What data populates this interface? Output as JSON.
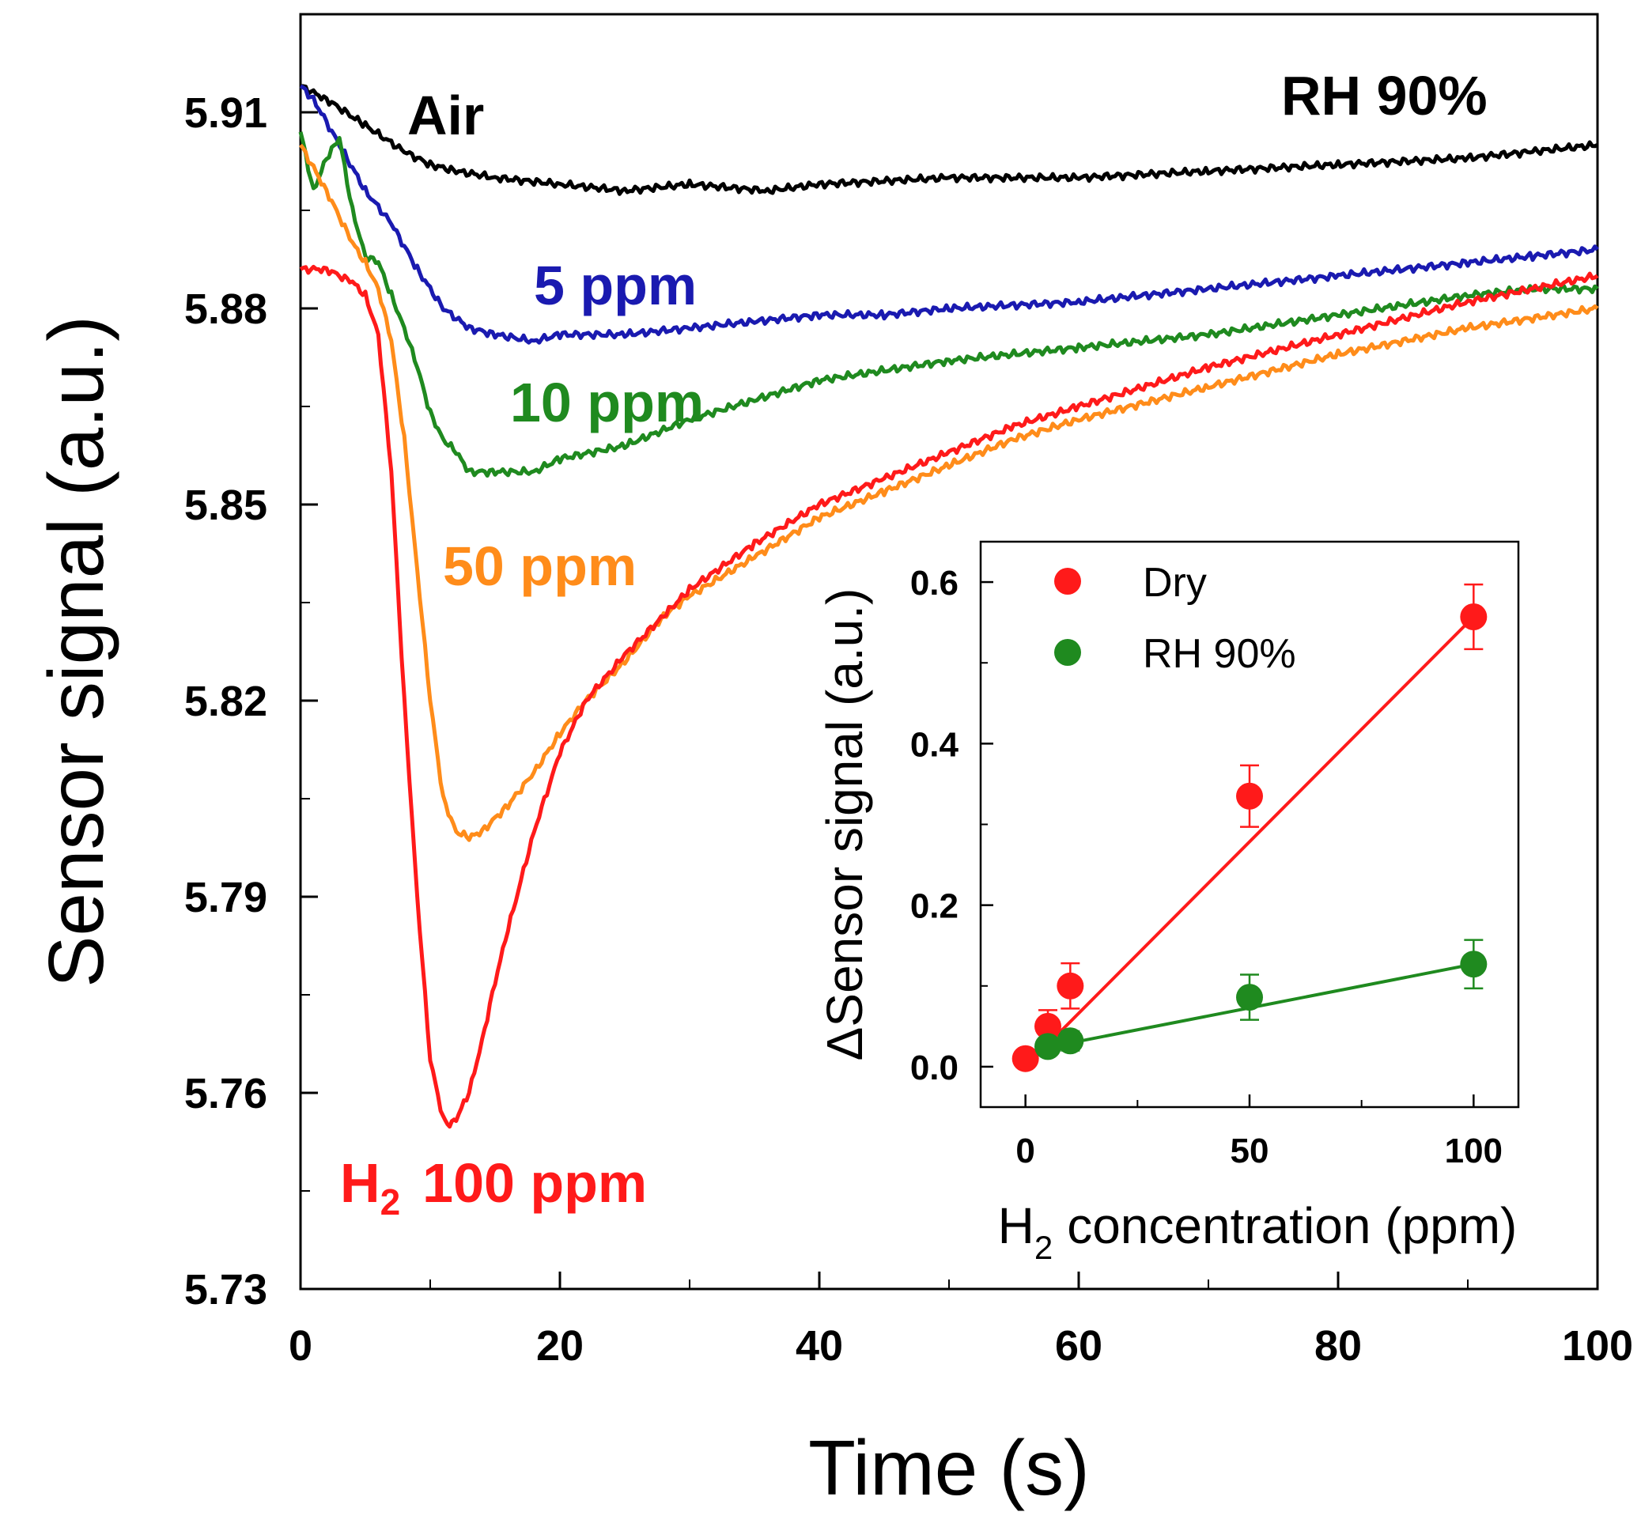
{
  "chart_data": [
    {
      "type": "line",
      "xlabel": "Time (s)",
      "ylabel": "Sensor signal (a.u.)",
      "xlim": [
        0,
        100
      ],
      "ylim": [
        5.73,
        5.925
      ],
      "xticks": [
        0,
        20,
        40,
        60,
        80,
        100
      ],
      "xtick_labels": [
        "0",
        "20",
        "40",
        "60",
        "80",
        "100"
      ],
      "yticks": [
        5.73,
        5.76,
        5.79,
        5.82,
        5.85,
        5.88,
        5.91
      ],
      "ytick_labels": [
        "5.73",
        "5.76",
        "5.79",
        "5.82",
        "5.85",
        "5.88",
        "5.91"
      ],
      "annotation": "RH 90%",
      "series": [
        {
          "name": "Air",
          "label": "Air",
          "color": "#000000",
          "x": [
            0,
            2,
            5,
            8,
            10,
            12,
            15,
            20,
            25,
            30,
            36,
            40,
            50,
            60,
            70,
            80,
            90,
            95,
            100
          ],
          "y": [
            5.914,
            5.912,
            5.908,
            5.904,
            5.902,
            5.901,
            5.9,
            5.899,
            5.898,
            5.899,
            5.898,
            5.899,
            5.9,
            5.9,
            5.901,
            5.902,
            5.903,
            5.904,
            5.905
          ]
        },
        {
          "name": "5 ppm",
          "label": "5 ppm",
          "color": "#1a1ab0",
          "x": [
            0,
            1,
            3,
            5,
            7,
            9,
            11,
            13,
            15,
            18,
            20,
            25,
            30,
            35,
            40,
            45,
            50,
            60,
            70,
            80,
            90,
            95,
            100
          ],
          "y": [
            5.914,
            5.912,
            5.905,
            5.898,
            5.893,
            5.886,
            5.88,
            5.877,
            5.876,
            5.875,
            5.876,
            5.876,
            5.877,
            5.878,
            5.879,
            5.879,
            5.88,
            5.881,
            5.883,
            5.885,
            5.887,
            5.888,
            5.889
          ]
        },
        {
          "name": "10 ppm",
          "label": "10 ppm",
          "color": "#1f8a1f",
          "x": [
            0,
            1,
            2,
            3,
            4,
            5,
            6,
            7,
            8,
            9,
            10,
            11,
            12,
            13,
            15,
            18,
            20,
            25,
            30,
            35,
            40,
            50,
            60,
            70,
            80,
            90,
            95,
            100
          ],
          "y": [
            5.907,
            5.898,
            5.903,
            5.906,
            5.895,
            5.888,
            5.887,
            5.882,
            5.877,
            5.871,
            5.864,
            5.86,
            5.858,
            5.855,
            5.855,
            5.855,
            5.857,
            5.859,
            5.863,
            5.866,
            5.869,
            5.872,
            5.874,
            5.876,
            5.879,
            5.882,
            5.883,
            5.883
          ]
        },
        {
          "name": "50 ppm",
          "label": "50 ppm",
          "color": "#ff8c1a",
          "x": [
            0,
            2,
            4,
            5,
            6,
            7,
            8,
            9,
            10,
            11,
            12,
            13,
            14,
            16,
            18,
            20,
            22,
            25,
            28,
            30,
            35,
            40,
            45,
            50,
            55,
            60,
            70,
            80,
            90,
            100
          ],
          "y": [
            5.905,
            5.898,
            5.89,
            5.887,
            5.883,
            5.875,
            5.86,
            5.84,
            5.82,
            5.805,
            5.8,
            5.799,
            5.8,
            5.804,
            5.809,
            5.815,
            5.82,
            5.826,
            5.833,
            5.836,
            5.842,
            5.848,
            5.852,
            5.856,
            5.86,
            5.863,
            5.868,
            5.873,
            5.877,
            5.88
          ]
        },
        {
          "name": "100 ppm",
          "label": "H2 100 ppm",
          "color": "#ff1a1a",
          "x": [
            0,
            2,
            4,
            5,
            6,
            7,
            8,
            9,
            10,
            11,
            11.5,
            12,
            13,
            14,
            15,
            16,
            18,
            20,
            22,
            25,
            28,
            30,
            35,
            40,
            45,
            50,
            55,
            60,
            70,
            80,
            90,
            100
          ],
          "y": [
            5.886,
            5.886,
            5.884,
            5.882,
            5.876,
            5.855,
            5.82,
            5.79,
            5.765,
            5.756,
            5.755,
            5.756,
            5.76,
            5.768,
            5.777,
            5.785,
            5.8,
            5.812,
            5.82,
            5.827,
            5.833,
            5.837,
            5.844,
            5.85,
            5.854,
            5.858,
            5.862,
            5.865,
            5.871,
            5.876,
            5.881,
            5.885
          ]
        }
      ]
    },
    {
      "type": "scatter",
      "xlabel": "H2 concentration (ppm)",
      "ylabel": "ΔSensor signal (a.u.)",
      "xlim": [
        -10,
        110
      ],
      "ylim": [
        -0.05,
        0.65
      ],
      "xticks": [
        0,
        50,
        100
      ],
      "xtick_labels": [
        "0",
        "50",
        "100"
      ],
      "yticks": [
        0.0,
        0.2,
        0.4,
        0.6
      ],
      "ytick_labels": [
        "0.0",
        "0.2",
        "0.4",
        "0.6"
      ],
      "series": [
        {
          "name": "Dry",
          "color": "#ff1a1a",
          "x": [
            0,
            5,
            10,
            50,
            100
          ],
          "y": [
            0.01,
            0.05,
            0.1,
            0.335,
            0.557
          ],
          "err": [
            0.01,
            0.02,
            0.028,
            0.038,
            0.04
          ],
          "fit": [
            [
              0,
              0.0
            ],
            [
              100,
              0.557
            ]
          ]
        },
        {
          "name": "RH 90%",
          "color": "#1f8a1f",
          "x": [
            5,
            10,
            50,
            100
          ],
          "y": [
            0.025,
            0.032,
            0.086,
            0.127
          ],
          "err": [
            0.01,
            0.012,
            0.028,
            0.03
          ],
          "fit": [
            [
              5,
              0.024
            ],
            [
              100,
              0.127
            ]
          ]
        }
      ]
    }
  ]
}
